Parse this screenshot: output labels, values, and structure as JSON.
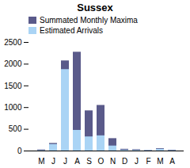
{
  "chart_data": {
    "type": "bar",
    "title": "Sussex",
    "categories": [
      "M",
      "J",
      "J",
      "A",
      "S",
      "O",
      "N",
      "D",
      "J",
      "F",
      "M",
      "A"
    ],
    "series": [
      {
        "name": "Summated Monthly Maxima",
        "color": "#5a5a8a",
        "values": [
          25,
          175,
          2075,
          2275,
          925,
          1050,
          285,
          40,
          30,
          15,
          55,
          20
        ]
      },
      {
        "name": "Estimated Arrivals",
        "color": "#aad4f5",
        "values": [
          10,
          150,
          1875,
          475,
          325,
          350,
          115,
          20,
          15,
          10,
          40,
          10
        ]
      }
    ],
    "ylim": [
      0,
      2500
    ],
    "yticks": [
      0,
      500,
      1000,
      1500,
      2000,
      2500
    ],
    "stacked": false,
    "grid": false,
    "legend": "upper left"
  }
}
